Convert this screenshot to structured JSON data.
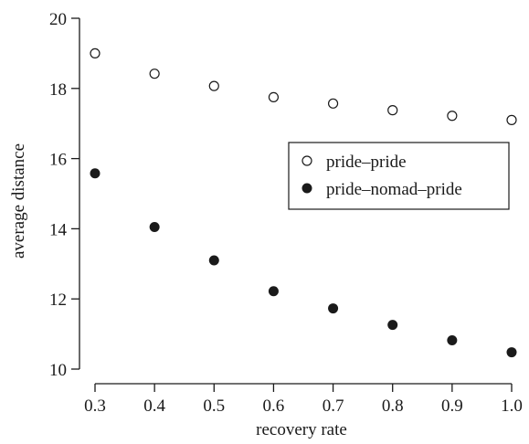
{
  "chart_data": {
    "type": "scatter",
    "title": "",
    "xlabel": "recovery rate",
    "ylabel": "average distance",
    "xlim": [
      0.3,
      1.0
    ],
    "ylim": [
      10,
      20
    ],
    "x_ticks": [
      "0.3",
      "0.4",
      "0.5",
      "0.6",
      "0.7",
      "0.8",
      "0.9",
      "1.0"
    ],
    "y_ticks": [
      "10",
      "12",
      "14",
      "16",
      "18",
      "20"
    ],
    "x": [
      0.3,
      0.4,
      0.5,
      0.6,
      0.7,
      0.8,
      0.9,
      1.0
    ],
    "series": [
      {
        "name": "pride–pride",
        "marker": "open-circle",
        "values": [
          19.0,
          18.42,
          18.07,
          17.75,
          17.57,
          17.38,
          17.22,
          17.1
        ]
      },
      {
        "name": "pride–nomad–pride",
        "marker": "filled-circle",
        "values": [
          15.58,
          14.05,
          13.1,
          12.22,
          11.73,
          11.26,
          10.82,
          10.48
        ]
      }
    ],
    "legend_position": "right",
    "grid": false,
    "colors": {
      "ink": "#1a1a1a",
      "background": "#ffffff"
    }
  }
}
